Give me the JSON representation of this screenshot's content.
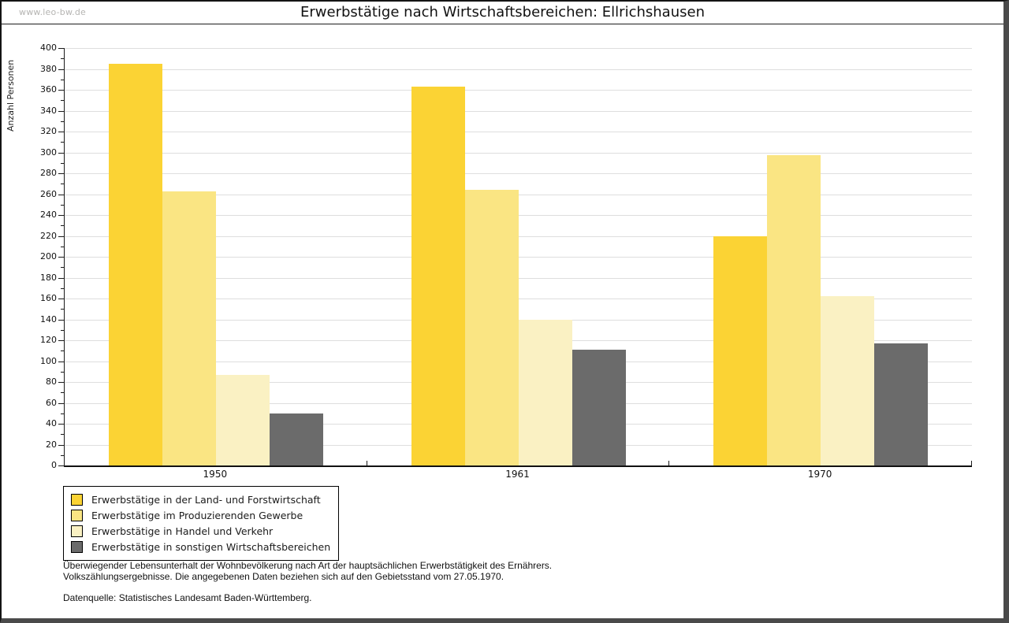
{
  "meta": {
    "watermark": "www.leo-bw.de"
  },
  "chart_data": {
    "type": "bar",
    "title": "Erwerbstätige nach Wirtschaftsbereichen: Ellrichshausen",
    "ylabel": "Anzahl Personen",
    "xlabel": "",
    "categories": [
      "1950",
      "1961",
      "1970"
    ],
    "series": [
      {
        "name": "Erwerbstätige in der Land- und Forstwirtschaft",
        "color": "#FBD334",
        "values": [
          385,
          363,
          220
        ]
      },
      {
        "name": "Erwerbstätige im Produzierenden Gewerbe",
        "color": "#FAE583",
        "values": [
          263,
          264,
          297
        ]
      },
      {
        "name": "Erwerbstätige in Handel und Verkehr",
        "color": "#FAF1C3",
        "values": [
          87,
          140,
          162
        ]
      },
      {
        "name": "Erwerbstätige in sonstigen Wirtschaftsbereichen",
        "color": "#6B6B6B",
        "values": [
          50,
          111,
          117
        ]
      }
    ],
    "ylim": [
      0,
      400
    ],
    "ytick_step": 20,
    "yminor_step": 10,
    "grid": true,
    "gridline_color": "#dedede",
    "legend_position": "bottom-left"
  },
  "footer": {
    "line1": "Überwiegender Lebensunterhalt der Wohnbevölkerung nach Art der hauptsächlichen Erwerbstätigkeit des Ernährers.",
    "line2": "Volkszählungsergebnisse. Die angegebenen Daten beziehen sich auf den Gebietsstand vom 27.05.1970.",
    "source": "Datenquelle: Statistisches Landesamt Baden-Württemberg."
  }
}
